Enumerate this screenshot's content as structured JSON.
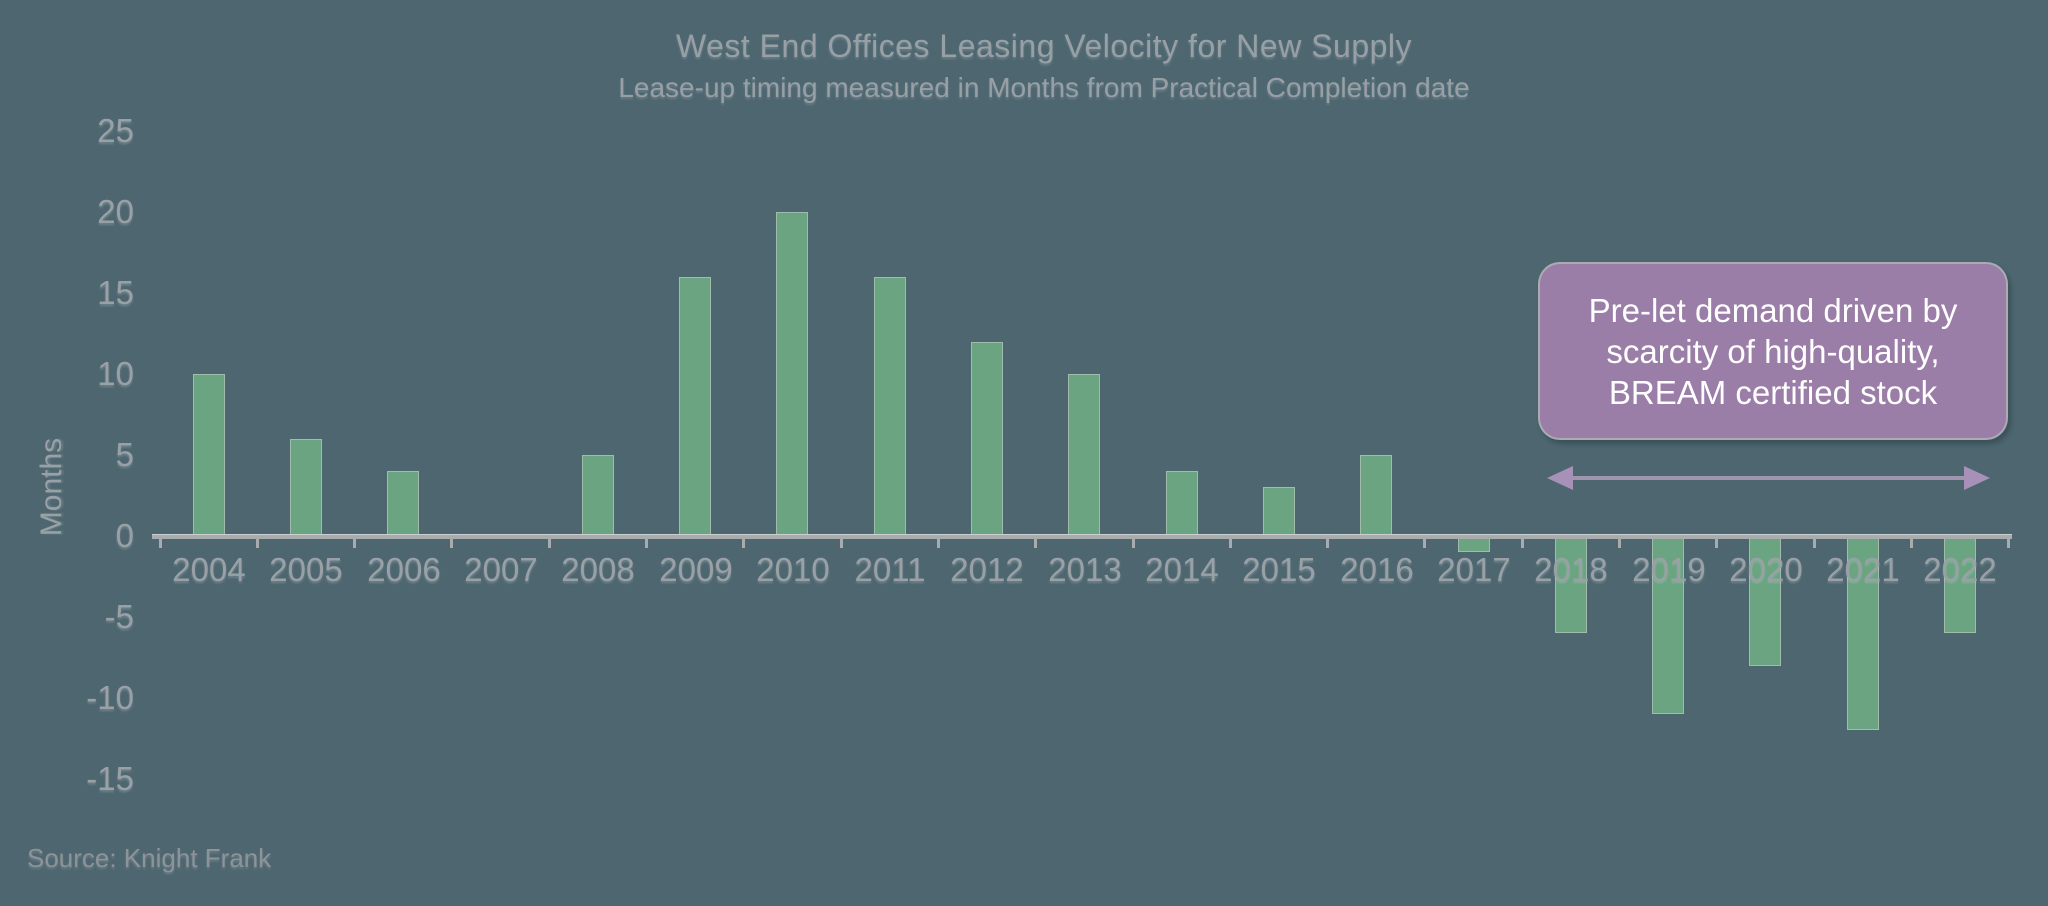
{
  "title": "West End Offices Leasing Velocity for New Supply",
  "subtitle": "Lease-up timing measured in Months from Practical Completion date",
  "source": "Source: Knight Frank",
  "annotation": {
    "text": "Pre-let demand driven by\nscarcity of high-quality,\nBREAM certified stock"
  },
  "chart_data": {
    "type": "bar",
    "title": "West End Offices Leasing Velocity for New Supply",
    "subtitle": "Lease-up timing measured in Months from Practical Completion date",
    "categories": [
      "2004",
      "2005",
      "2006",
      "2007",
      "2008",
      "2009",
      "2010",
      "2011",
      "2012",
      "2013",
      "2014",
      "2015",
      "2016",
      "2017",
      "2018",
      "2019",
      "2020",
      "2021",
      "2022"
    ],
    "values": [
      10,
      6,
      4,
      0,
      5,
      16,
      20,
      16,
      12,
      10,
      4,
      3,
      5,
      -1,
      -6,
      -11,
      -8,
      -12,
      -6
    ],
    "xlabel": "",
    "ylabel": "Months",
    "yticks": [
      25,
      20,
      15,
      10,
      5,
      0,
      -5,
      -10,
      -15
    ],
    "ylim": [
      -15,
      25
    ],
    "grid": false,
    "legend": "none",
    "annotation_span_years": [
      "2018",
      "2022"
    ]
  },
  "colors": {
    "background": "#4d6670",
    "bar": "#6aa480",
    "axis": "#a9acad",
    "label_text": "#9aa1a6",
    "title_text": "#99a0a5",
    "source_text": "#8d9398",
    "annotation_fill": "#9a7ea8",
    "annotation_text": "#ffffff",
    "arrow_line": "#a095ae",
    "arrow_head": "#a791b8"
  }
}
